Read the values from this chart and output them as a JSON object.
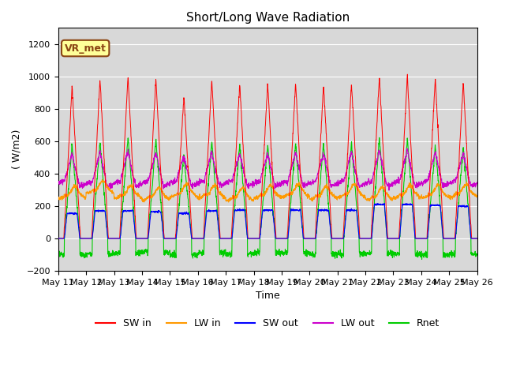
{
  "title": "Short/Long Wave Radiation",
  "xlabel": "Time",
  "ylabel": "( W/m2)",
  "ylim": [
    -200,
    1300
  ],
  "yticks": [
    -200,
    0,
    200,
    400,
    600,
    800,
    1000,
    1200
  ],
  "annotation": "VR_met",
  "x_tick_labels": [
    "May 11",
    "May 12",
    "May 13",
    "May 14",
    "May 15",
    "May 16",
    "May 17",
    "May 18",
    "May 19",
    "May 20",
    "May 21",
    "May 22",
    "May 23",
    "May 24",
    "May 25",
    "May 26"
  ],
  "legend": [
    "SW in",
    "LW in",
    "SW out",
    "LW out",
    "Rnet"
  ],
  "colors": {
    "SW in": "#ff0000",
    "LW in": "#ff9900",
    "SW out": "#0000ff",
    "LW out": "#cc00cc",
    "Rnet": "#00cc00"
  },
  "background_color": "#ffffff",
  "plot_bg_color": "#d8d8d8",
  "n_days": 15,
  "pts_per_day": 144
}
